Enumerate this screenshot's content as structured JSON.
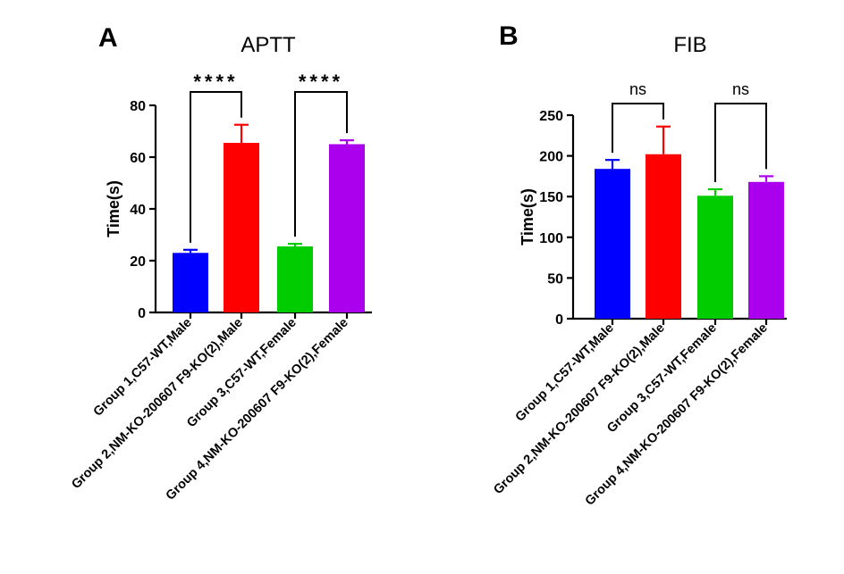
{
  "chart_data": [
    {
      "type": "bar",
      "panel_label": "A",
      "title": "APTT",
      "ylabel": "Time(s)",
      "xlabel": "",
      "ylim": [
        0,
        80
      ],
      "yticks": [
        "0",
        "20",
        "40",
        "60",
        "80"
      ],
      "categories": [
        "Group 1,C57-WT,Male",
        "Group 2,NM-KO-200607 F9-KO(2),Male",
        "Group 3,C57-WT,Female",
        "Group 4,NM-KO-200607 F9-KO(2),Female"
      ],
      "values": [
        23,
        65.5,
        25.5,
        65
      ],
      "errors": [
        1.2,
        7,
        1,
        1.5
      ],
      "colors": [
        "#0000ff",
        "#ff0000",
        "#00cc00",
        "#aa00ee"
      ],
      "significance": [
        {
          "between": [
            0,
            1
          ],
          "label": "****"
        },
        {
          "between": [
            2,
            3
          ],
          "label": "****"
        }
      ]
    },
    {
      "type": "bar",
      "panel_label": "B",
      "title": "FIB",
      "ylabel": "Time(s)",
      "xlabel": "",
      "ylim": [
        0,
        250
      ],
      "yticks": [
        "0",
        "50",
        "100",
        "150",
        "200",
        "250"
      ],
      "categories": [
        "Group 1,C57-WT,Male",
        "Group 2,NM-KO-200607 F9-KO(2),Male",
        "Group 3,C57-WT,Female",
        "Group 4,NM-KO-200607 F9-KO(2),Female"
      ],
      "values": [
        184,
        202,
        151,
        168
      ],
      "errors": [
        11,
        34,
        8,
        7
      ],
      "colors": [
        "#0000ff",
        "#ff0000",
        "#00cc00",
        "#aa00ee"
      ],
      "significance": [
        {
          "between": [
            0,
            1
          ],
          "label": "ns"
        },
        {
          "between": [
            2,
            3
          ],
          "label": "ns"
        }
      ]
    }
  ]
}
